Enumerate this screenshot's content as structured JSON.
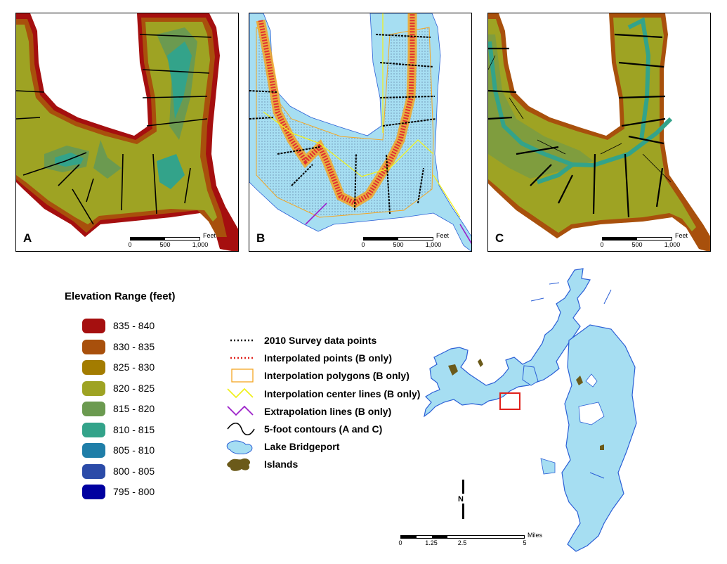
{
  "panels": [
    {
      "label": "A",
      "scale": {
        "unit": "Feet",
        "ticks": [
          "0",
          "500",
          "1,000"
        ]
      }
    },
    {
      "label": "B",
      "scale": {
        "unit": "Feet",
        "ticks": [
          "0",
          "500",
          "1,000"
        ]
      }
    },
    {
      "label": "C",
      "scale": {
        "unit": "Feet",
        "ticks": [
          "0",
          "500",
          "1,000"
        ]
      }
    }
  ],
  "legend": {
    "title": "Elevation Range (feet)",
    "ranges": [
      {
        "label": "835 - 840",
        "color": "#a50f0f"
      },
      {
        "label": "830 - 835",
        "color": "#a8500c"
      },
      {
        "label": "825 - 830",
        "color": "#a37c00"
      },
      {
        "label": "820 - 825",
        "color": "#9ea323"
      },
      {
        "label": "815 - 820",
        "color": "#6b9a50"
      },
      {
        "label": "810 - 815",
        "color": "#33a38a"
      },
      {
        "label": "805 - 810",
        "color": "#1f7ea8"
      },
      {
        "label": "800 - 805",
        "color": "#2b4ba8"
      },
      {
        "label": "795 - 800",
        "color": "#0000a0"
      }
    ],
    "symbols": [
      {
        "label": "2010 Survey data points",
        "kind": "dots-black"
      },
      {
        "label": "Interpolated points (B only)",
        "kind": "dots-red"
      },
      {
        "label": "Interpolation polygons (B only)",
        "kind": "polygon-orange"
      },
      {
        "label": "Interpolation center lines (B only)",
        "kind": "zigzag-yellow"
      },
      {
        "label": "Extrapolation lines (B only)",
        "kind": "zigzag-purple"
      },
      {
        "label": "5-foot contours (A and C)",
        "kind": "wave-black"
      },
      {
        "label": "Lake Bridgeport",
        "kind": "lake-blue"
      },
      {
        "label": "Islands",
        "kind": "island-brown"
      }
    ]
  },
  "overview": {
    "north_label": "N",
    "scale": {
      "unit": "Miles",
      "ticks": [
        "0",
        "1.25",
        "2.5",
        "5"
      ]
    },
    "lake_color": "#a6def2",
    "outline_color": "#2b5fd6",
    "locator_color": "#e0201b"
  }
}
